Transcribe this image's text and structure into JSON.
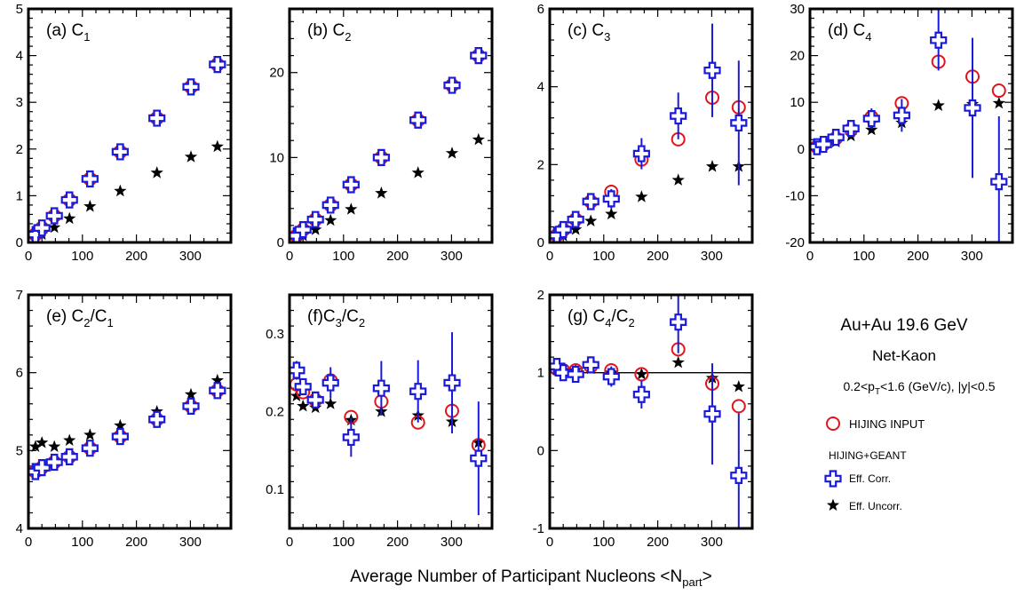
{
  "figure": {
    "xlabel": "Average Number of Participant Nucleons <N",
    "xlabel_sub": "part",
    "xlabel_end": ">"
  },
  "legend": {
    "system": "Au+Au 19.6 GeV",
    "particle": "Net-Kaon",
    "cuts": {
      "a": "0.2<p",
      "sub": "T",
      "b": "<1.6 (GeV/c), |y|<0.5"
    },
    "input_label": "HIJING INPUT",
    "geant_header": "HIJING+GEANT",
    "corr_label": "Eff. Corr.",
    "uncorr_label": "Eff. Uncorr."
  },
  "colors": {
    "input": "#e0151b",
    "corr": "#1a1adc",
    "uncorr": "#000000",
    "axes": "#000000"
  },
  "chart_data": [
    {
      "type": "scatter",
      "id": "a",
      "label_main": "(a) C",
      "label_sub": "1",
      "xlim": [
        0,
        375
      ],
      "ylim": [
        0,
        5
      ],
      "xticks": [
        0,
        100,
        200,
        300
      ],
      "yticks": [
        0,
        1,
        2,
        3,
        4,
        5
      ],
      "series": [
        {
          "name": "HIJING INPUT",
          "marker": "circle",
          "color": "#e0151b",
          "x": [
            13,
            25,
            48,
            76,
            114,
            170,
            238,
            301,
            350
          ],
          "y": [
            0.17,
            0.31,
            0.57,
            0.91,
            1.36,
            1.94,
            2.66,
            3.33,
            3.81
          ],
          "err": []
        },
        {
          "name": "Eff. Corr.",
          "marker": "cross",
          "color": "#1a1adc",
          "x": [
            13,
            25,
            48,
            76,
            114,
            170,
            238,
            301,
            350
          ],
          "y": [
            0.17,
            0.31,
            0.57,
            0.91,
            1.36,
            1.94,
            2.66,
            3.33,
            3.81
          ],
          "err": []
        },
        {
          "name": "Eff. Uncorr.",
          "marker": "star",
          "color": "#000000",
          "x": [
            13,
            25,
            48,
            76,
            114,
            170,
            238,
            301,
            350
          ],
          "y": [
            0.09,
            0.17,
            0.32,
            0.51,
            0.77,
            1.1,
            1.49,
            1.83,
            2.05
          ],
          "err": []
        }
      ]
    },
    {
      "type": "scatter",
      "id": "b",
      "label_main": "(b) C",
      "label_sub": "2",
      "xlim": [
        0,
        375
      ],
      "ylim": [
        0,
        27.5
      ],
      "xticks": [
        0,
        100,
        200,
        300
      ],
      "yticks": [
        0,
        10,
        20
      ],
      "series": [
        {
          "name": "HIJING INPUT",
          "marker": "circle",
          "color": "#e0151b",
          "x": [
            13,
            25,
            48,
            76,
            114,
            170,
            238,
            301,
            350
          ],
          "y": [
            0.8,
            1.5,
            2.7,
            4.4,
            6.8,
            10.0,
            14.4,
            18.5,
            22.0
          ],
          "err": []
        },
        {
          "name": "Eff. Corr.",
          "marker": "cross",
          "color": "#1a1adc",
          "x": [
            13,
            25,
            48,
            76,
            114,
            170,
            238,
            301,
            350
          ],
          "y": [
            0.8,
            1.5,
            2.7,
            4.4,
            6.8,
            10.0,
            14.4,
            18.5,
            22.0
          ],
          "err": []
        },
        {
          "name": "Eff. Uncorr.",
          "marker": "star",
          "color": "#000000",
          "x": [
            13,
            25,
            48,
            76,
            114,
            170,
            238,
            301,
            350
          ],
          "y": [
            0.4,
            0.8,
            1.5,
            2.6,
            3.9,
            5.8,
            8.2,
            10.5,
            12.1
          ],
          "err": []
        }
      ]
    },
    {
      "type": "scatter",
      "id": "c",
      "label_main": "(c) C",
      "label_sub": "3",
      "xlim": [
        0,
        375
      ],
      "ylim": [
        0,
        6
      ],
      "xticks": [
        0,
        100,
        200,
        300
      ],
      "yticks": [
        0,
        2,
        4,
        6
      ],
      "series": [
        {
          "name": "HIJING INPUT",
          "marker": "circle",
          "color": "#e0151b",
          "x": [
            13,
            25,
            48,
            76,
            114,
            170,
            238,
            301,
            350
          ],
          "y": [
            0.18,
            0.33,
            0.59,
            1.05,
            1.3,
            2.13,
            2.65,
            3.72,
            3.47
          ],
          "err": []
        },
        {
          "name": "Eff. Corr.",
          "marker": "cross",
          "color": "#1a1adc",
          "x": [
            13,
            25,
            48,
            76,
            114,
            170,
            238,
            301,
            350
          ],
          "y": [
            0.18,
            0.33,
            0.59,
            1.05,
            1.12,
            2.28,
            3.25,
            4.42,
            3.07
          ],
          "err": [
            0.04,
            0.05,
            0.08,
            0.13,
            0.25,
            0.4,
            0.6,
            1.2,
            1.6
          ]
        },
        {
          "name": "Eff. Uncorr.",
          "marker": "star",
          "color": "#000000",
          "x": [
            13,
            25,
            48,
            76,
            114,
            170,
            238,
            301,
            350
          ],
          "y": [
            0.09,
            0.17,
            0.33,
            0.55,
            0.73,
            1.17,
            1.6,
            1.95,
            1.95
          ],
          "err": []
        }
      ]
    },
    {
      "type": "scatter",
      "id": "d",
      "label_main": "(d) C",
      "label_sub": "4",
      "xlim": [
        0,
        375
      ],
      "ylim": [
        -20,
        30
      ],
      "xticks": [
        0,
        100,
        200,
        300
      ],
      "yticks": [
        -20,
        -10,
        0,
        10,
        20,
        30
      ],
      "series": [
        {
          "name": "HIJING INPUT",
          "marker": "circle",
          "color": "#e0151b",
          "x": [
            13,
            25,
            48,
            76,
            114,
            170,
            238,
            301,
            350
          ],
          "y": [
            0.5,
            1.0,
            2.3,
            4.2,
            6.8,
            9.8,
            18.7,
            15.5,
            12.5
          ],
          "err": []
        },
        {
          "name": "Eff. Corr.",
          "marker": "cross",
          "color": "#1a1adc",
          "x": [
            13,
            25,
            48,
            76,
            114,
            170,
            238,
            301,
            350
          ],
          "y": [
            0.5,
            1.0,
            2.5,
            4.4,
            6.5,
            7.2,
            23.3,
            8.8,
            -7.0
          ],
          "err": [
            0.3,
            0.5,
            0.9,
            1.5,
            2.2,
            3.5,
            6.5,
            15.0,
            14.0
          ]
        },
        {
          "name": "Eff. Uncorr.",
          "marker": "star",
          "color": "#000000",
          "x": [
            13,
            25,
            48,
            76,
            114,
            170,
            238,
            301,
            350
          ],
          "y": [
            0.3,
            0.7,
            1.5,
            2.8,
            4.1,
            5.6,
            9.3,
            9.6,
            9.8
          ],
          "err": []
        }
      ]
    },
    {
      "type": "scatter",
      "id": "e",
      "label_main": "(e) C",
      "label_sub": "2",
      "label_mid": "/C",
      "label_sub2": "1",
      "xlim": [
        0,
        375
      ],
      "ylim": [
        4,
        7
      ],
      "xticks": [
        0,
        100,
        200,
        300
      ],
      "yticks": [
        4,
        5,
        6,
        7
      ],
      "series": [
        {
          "name": "HIJING INPUT",
          "marker": "circle",
          "color": "#e0151b",
          "x": [
            13,
            25,
            48,
            76,
            114,
            170,
            238,
            301,
            350
          ],
          "y": [
            4.73,
            4.78,
            4.85,
            4.92,
            5.03,
            5.18,
            5.4,
            5.57,
            5.77
          ],
          "err": []
        },
        {
          "name": "Eff. Corr.",
          "marker": "cross",
          "color": "#1a1adc",
          "x": [
            13,
            25,
            48,
            76,
            114,
            170,
            238,
            301,
            350
          ],
          "y": [
            4.73,
            4.78,
            4.85,
            4.92,
            5.03,
            5.18,
            5.4,
            5.57,
            5.77
          ],
          "err": []
        },
        {
          "name": "Eff. Uncorr.",
          "marker": "star",
          "color": "#000000",
          "x": [
            13,
            25,
            48,
            76,
            114,
            170,
            238,
            301,
            350
          ],
          "y": [
            5.05,
            5.1,
            5.05,
            5.13,
            5.2,
            5.32,
            5.5,
            5.72,
            5.9
          ],
          "err": []
        }
      ]
    },
    {
      "type": "scatter",
      "id": "f",
      "label_main": "(f)C",
      "label_sub": "3",
      "label_mid": "/C",
      "label_sub2": "2",
      "xlim": [
        0,
        375
      ],
      "ylim": [
        0.05,
        0.35
      ],
      "xticks": [
        0,
        100,
        200,
        300
      ],
      "yticks": [
        0.1,
        0.2,
        0.3
      ],
      "series": [
        {
          "name": "HIJING INPUT",
          "marker": "circle",
          "color": "#e0151b",
          "x": [
            13,
            25,
            48,
            76,
            114,
            170,
            238,
            301,
            350
          ],
          "y": [
            0.235,
            0.225,
            0.215,
            0.24,
            0.193,
            0.213,
            0.186,
            0.201,
            0.157
          ],
          "err": []
        },
        {
          "name": "Eff. Corr.",
          "marker": "cross",
          "color": "#1a1adc",
          "x": [
            13,
            25,
            48,
            76,
            114,
            170,
            238,
            301,
            350
          ],
          "y": [
            0.253,
            0.232,
            0.215,
            0.237,
            0.167,
            0.23,
            0.226,
            0.237,
            0.14
          ],
          "err": [
            0.012,
            0.01,
            0.01,
            0.02,
            0.025,
            0.035,
            0.04,
            0.065,
            0.073
          ]
        },
        {
          "name": "Eff. Uncorr.",
          "marker": "star",
          "color": "#000000",
          "x": [
            13,
            25,
            48,
            76,
            114,
            170,
            238,
            301,
            350
          ],
          "y": [
            0.22,
            0.207,
            0.205,
            0.21,
            0.189,
            0.2,
            0.195,
            0.187,
            0.16
          ],
          "err": []
        }
      ]
    },
    {
      "type": "scatter",
      "id": "g",
      "label_main": "(g) C",
      "label_sub": "4",
      "label_mid": "/C",
      "label_sub2": "2",
      "xlim": [
        0,
        375
      ],
      "ylim": [
        -1,
        2
      ],
      "xticks": [
        0,
        100,
        200,
        300
      ],
      "yticks": [
        -1,
        0,
        1,
        2
      ],
      "hline": 1,
      "series": [
        {
          "name": "HIJING INPUT",
          "marker": "circle",
          "color": "#e0151b",
          "x": [
            13,
            25,
            48,
            76,
            114,
            170,
            238,
            301,
            350
          ],
          "y": [
            1.05,
            1.03,
            1.03,
            1.08,
            1.03,
            0.98,
            1.3,
            0.86,
            0.57
          ],
          "err": []
        },
        {
          "name": "Eff. Corr.",
          "marker": "cross",
          "color": "#1a1adc",
          "x": [
            13,
            25,
            48,
            76,
            114,
            170,
            238,
            301,
            350
          ],
          "y": [
            1.08,
            1.0,
            0.98,
            1.1,
            0.95,
            0.72,
            1.65,
            0.47,
            -0.32
          ],
          "err": [
            0.05,
            0.07,
            0.08,
            0.1,
            0.13,
            0.18,
            0.4,
            0.65,
            0.8
          ]
        },
        {
          "name": "Eff. Uncorr.",
          "marker": "star",
          "color": "#000000",
          "x": [
            13,
            25,
            48,
            76,
            114,
            170,
            238,
            301,
            350
          ],
          "y": [
            1.05,
            1.03,
            1.03,
            1.05,
            1.0,
            0.98,
            1.13,
            0.93,
            0.82
          ],
          "err": []
        }
      ]
    }
  ]
}
